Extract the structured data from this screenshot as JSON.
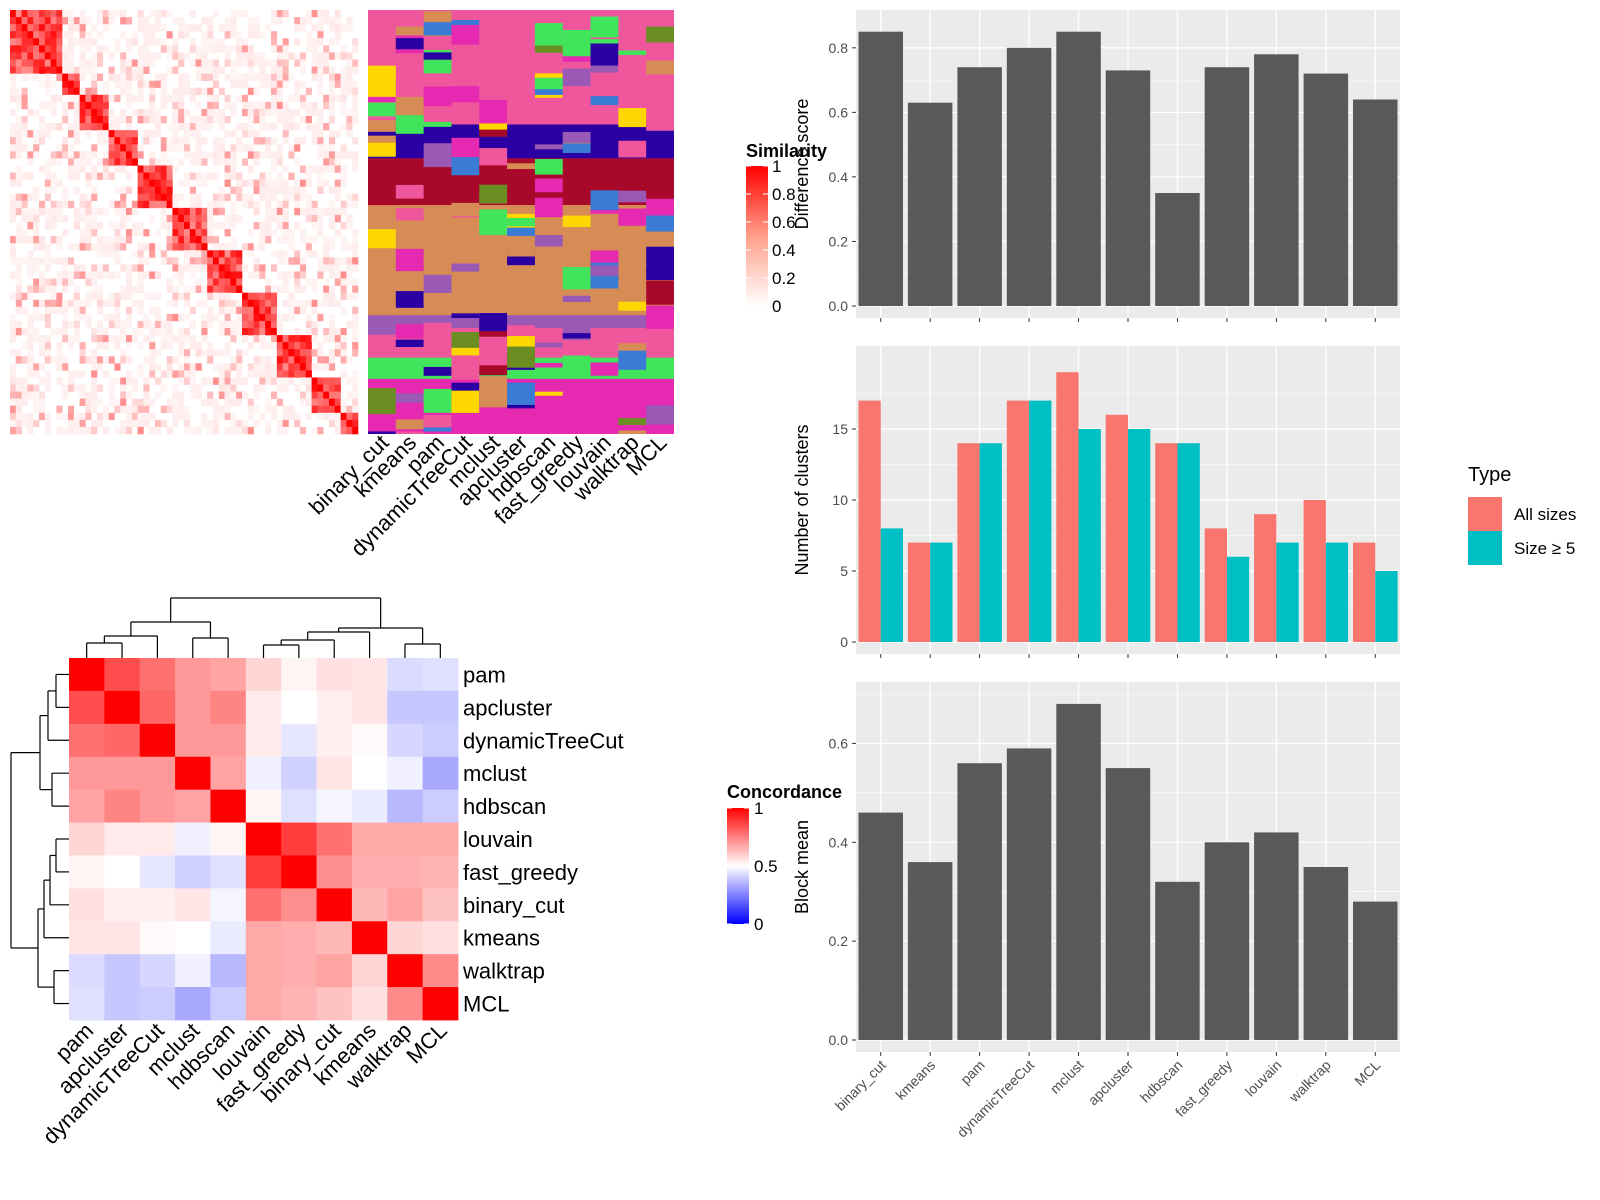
{
  "colors": {
    "panel_bg": "#ebebeb",
    "grid": "#ffffff",
    "bar": "#595959",
    "all_sizes": "#f8766d",
    "size_ge_5": "#00bfc4",
    "heat_high": "#ff0000",
    "heat_mid": "#ffffff",
    "heat_low": "#0000ff"
  },
  "chart_data": [
    {
      "id": "similarity-heatmap",
      "type": "heatmap",
      "legend_title": "Similarity",
      "legend_ticks": [
        "1",
        "0.8",
        "0.6",
        "0.4",
        "0.2",
        "0"
      ],
      "columns": [
        "binary_cut",
        "kmeans",
        "pam",
        "dynamicTreeCut",
        "mclust",
        "apcluster",
        "hdbscan",
        "fast_greedy",
        "louvain",
        "walktrap",
        "MCL"
      ]
    },
    {
      "id": "concordance-heatmap",
      "type": "heatmap",
      "legend_title": "Concordance",
      "legend_ticks": [
        "1",
        "0.5",
        "0"
      ],
      "rows": [
        "pam",
        "apcluster",
        "dynamicTreeCut",
        "mclust",
        "hdbscan",
        "louvain",
        "fast_greedy",
        "binary_cut",
        "kmeans",
        "walktrap",
        "MCL"
      ],
      "columns": [
        "pam",
        "apcluster",
        "dynamicTreeCut",
        "mclust",
        "hdbscan",
        "louvain",
        "fast_greedy",
        "binary_cut",
        "kmeans",
        "walktrap",
        "MCL"
      ],
      "values": [
        [
          1.0,
          0.85,
          0.78,
          0.7,
          0.68,
          0.58,
          0.52,
          0.56,
          0.55,
          0.43,
          0.44
        ],
        [
          0.85,
          1.0,
          0.8,
          0.7,
          0.74,
          0.54,
          0.5,
          0.53,
          0.55,
          0.39,
          0.39
        ],
        [
          0.78,
          0.8,
          1.0,
          0.7,
          0.7,
          0.54,
          0.45,
          0.53,
          0.51,
          0.42,
          0.4
        ],
        [
          0.7,
          0.7,
          0.7,
          1.0,
          0.68,
          0.47,
          0.41,
          0.55,
          0.5,
          0.47,
          0.33
        ],
        [
          0.68,
          0.74,
          0.7,
          0.68,
          1.0,
          0.52,
          0.44,
          0.48,
          0.46,
          0.36,
          0.4
        ],
        [
          0.58,
          0.54,
          0.54,
          0.47,
          0.52,
          1.0,
          0.88,
          0.78,
          0.67,
          0.67,
          0.67
        ],
        [
          0.52,
          0.5,
          0.45,
          0.41,
          0.44,
          0.88,
          1.0,
          0.72,
          0.66,
          0.66,
          0.65
        ],
        [
          0.56,
          0.53,
          0.53,
          0.55,
          0.48,
          0.78,
          0.72,
          1.0,
          0.64,
          0.68,
          0.62
        ],
        [
          0.55,
          0.55,
          0.51,
          0.5,
          0.46,
          0.67,
          0.66,
          0.64,
          1.0,
          0.58,
          0.56
        ],
        [
          0.43,
          0.39,
          0.42,
          0.47,
          0.36,
          0.67,
          0.66,
          0.68,
          0.58,
          1.0,
          0.73
        ],
        [
          0.44,
          0.39,
          0.4,
          0.33,
          0.4,
          0.67,
          0.65,
          0.62,
          0.56,
          0.73,
          1.0
        ]
      ],
      "range": [
        0,
        1
      ]
    },
    {
      "id": "difference-score",
      "type": "bar",
      "categories": [
        "binary_cut",
        "kmeans",
        "pam",
        "dynamicTreeCut",
        "mclust",
        "apcluster",
        "hdbscan",
        "fast_greedy",
        "louvain",
        "walktrap",
        "MCL"
      ],
      "values": [
        0.85,
        0.63,
        0.74,
        0.8,
        0.85,
        0.73,
        0.35,
        0.74,
        0.78,
        0.72,
        0.64
      ],
      "ylabel": "Difference score",
      "ylim": [
        0,
        0.88
      ],
      "yticks": [
        "0.0",
        "0.2",
        "0.4",
        "0.6",
        "0.8"
      ],
      "grid": true
    },
    {
      "id": "number-of-clusters",
      "type": "bar",
      "categories": [
        "binary_cut",
        "kmeans",
        "pam",
        "dynamicTreeCut",
        "mclust",
        "apcluster",
        "hdbscan",
        "fast_greedy",
        "louvain",
        "walktrap",
        "MCL"
      ],
      "series": [
        {
          "name": "All sizes",
          "values": [
            17,
            7,
            14,
            17,
            19,
            16,
            14,
            8,
            9,
            10,
            7
          ]
        },
        {
          "name": "Size ≥ 5",
          "values": [
            8,
            7,
            14,
            17,
            15,
            15,
            14,
            6,
            7,
            7,
            5
          ]
        }
      ],
      "ylabel": "Number of clusters",
      "ylim": [
        0,
        20
      ],
      "yticks": [
        "0",
        "5",
        "10",
        "15"
      ],
      "legend_title": "Type",
      "legend_position": "right",
      "grid": true
    },
    {
      "id": "block-mean",
      "type": "bar",
      "categories": [
        "binary_cut",
        "kmeans",
        "pam",
        "dynamicTreeCut",
        "mclust",
        "apcluster",
        "hdbscan",
        "fast_greedy",
        "louvain",
        "walktrap",
        "MCL"
      ],
      "values": [
        0.46,
        0.36,
        0.56,
        0.59,
        0.68,
        0.55,
        0.32,
        0.4,
        0.42,
        0.35,
        0.28
      ],
      "ylabel": "Block mean",
      "ylim": [
        0,
        0.7
      ],
      "yticks": [
        "0.0",
        "0.2",
        "0.4",
        "0.6"
      ],
      "grid": true
    }
  ]
}
